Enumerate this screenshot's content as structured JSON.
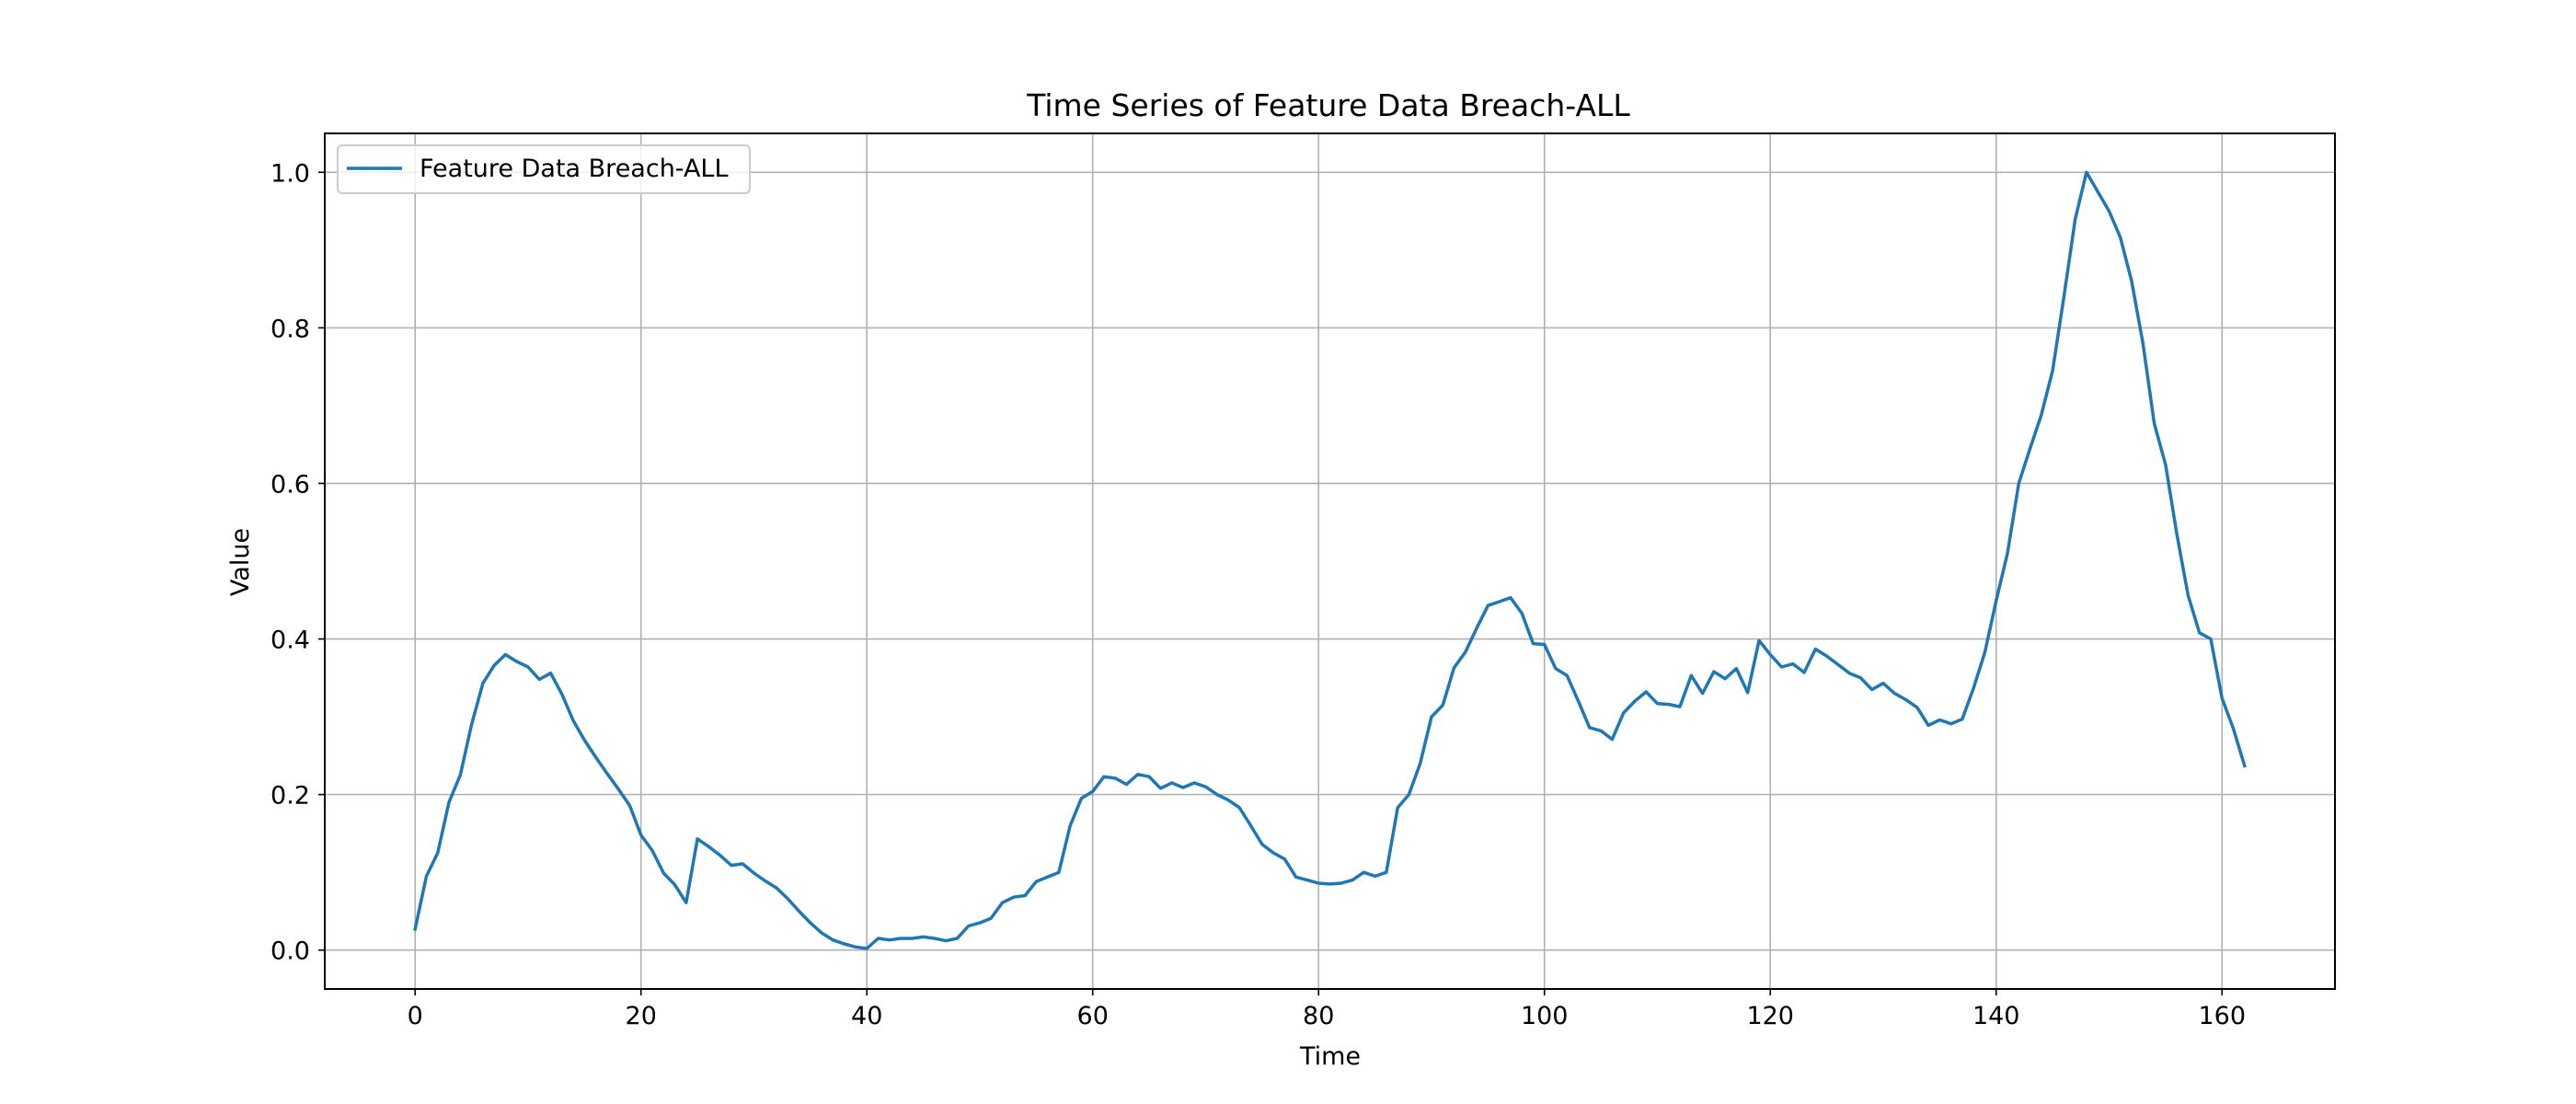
{
  "chart_data": {
    "type": "line",
    "title": "Time Series of Feature Data Breach-ALL",
    "xlabel": "Time",
    "ylabel": "Value",
    "xlim": [
      -8,
      170
    ],
    "ylim": [
      -0.05,
      1.05
    ],
    "xticks": [
      0,
      20,
      40,
      60,
      80,
      100,
      120,
      140,
      160
    ],
    "yticks": [
      0.0,
      0.2,
      0.4,
      0.6,
      0.8,
      1.0
    ],
    "xtick_labels": [
      "0",
      "20",
      "40",
      "60",
      "80",
      "100",
      "120",
      "140",
      "160"
    ],
    "ytick_labels": [
      "0.0",
      "0.2",
      "0.4",
      "0.6",
      "0.8",
      "1.0"
    ],
    "grid": true,
    "legend_position": "top-left",
    "series": [
      {
        "name": "Feature Data Breach-ALL",
        "color": "#1f77b4",
        "x": [
          0,
          1,
          2,
          3,
          4,
          5,
          6,
          7,
          8,
          9,
          10,
          11,
          12,
          13,
          14,
          15,
          16,
          17,
          18,
          19,
          20,
          21,
          22,
          23,
          24,
          25,
          26,
          27,
          28,
          29,
          30,
          31,
          32,
          33,
          34,
          35,
          36,
          37,
          38,
          39,
          40,
          41,
          42,
          43,
          44,
          45,
          46,
          47,
          48,
          49,
          50,
          51,
          52,
          53,
          54,
          55,
          56,
          57,
          58,
          59,
          60,
          61,
          62,
          63,
          64,
          65,
          66,
          67,
          68,
          69,
          70,
          71,
          72,
          73,
          74,
          75,
          76,
          77,
          78,
          79,
          80,
          81,
          82,
          83,
          84,
          85,
          86,
          87,
          88,
          89,
          90,
          91,
          92,
          93,
          94,
          95,
          96,
          97,
          98,
          99,
          100,
          101,
          102,
          103,
          104,
          105,
          106,
          107,
          108,
          109,
          110,
          111,
          112,
          113,
          114,
          115,
          116,
          117,
          118,
          119,
          120,
          121,
          122,
          123,
          124,
          125,
          126,
          127,
          128,
          129,
          130,
          131,
          132,
          133,
          134,
          135,
          136,
          137,
          138,
          139,
          140,
          141,
          142,
          143,
          144,
          145,
          146,
          147,
          148,
          149,
          150,
          151,
          152,
          153,
          154,
          155,
          156,
          157,
          158,
          159,
          160,
          161,
          162
        ],
        "y": [
          0.027,
          0.095,
          0.125,
          0.19,
          0.225,
          0.29,
          0.343,
          0.366,
          0.38,
          0.371,
          0.364,
          0.348,
          0.356,
          0.329,
          0.295,
          0.27,
          0.248,
          0.227,
          0.207,
          0.186,
          0.148,
          0.128,
          0.099,
          0.084,
          0.061,
          0.143,
          0.133,
          0.122,
          0.109,
          0.111,
          0.099,
          0.089,
          0.08,
          0.066,
          0.05,
          0.035,
          0.022,
          0.013,
          0.008,
          0.004,
          0.002,
          0.015,
          0.013,
          0.015,
          0.015,
          0.017,
          0.015,
          0.012,
          0.015,
          0.031,
          0.035,
          0.041,
          0.061,
          0.068,
          0.07,
          0.088,
          0.094,
          0.1,
          0.16,
          0.195,
          0.204,
          0.223,
          0.221,
          0.213,
          0.226,
          0.223,
          0.208,
          0.215,
          0.209,
          0.215,
          0.21,
          0.2,
          0.193,
          0.183,
          0.16,
          0.136,
          0.125,
          0.117,
          0.094,
          0.09,
          0.086,
          0.085,
          0.086,
          0.09,
          0.1,
          0.095,
          0.1,
          0.183,
          0.2,
          0.24,
          0.3,
          0.315,
          0.363,
          0.383,
          0.414,
          0.443,
          0.448,
          0.453,
          0.433,
          0.394,
          0.393,
          0.362,
          0.353,
          0.32,
          0.286,
          0.282,
          0.271,
          0.305,
          0.32,
          0.332,
          0.317,
          0.316,
          0.313,
          0.353,
          0.33,
          0.358,
          0.349,
          0.362,
          0.331,
          0.398,
          0.38,
          0.364,
          0.368,
          0.357,
          0.387,
          0.378,
          0.367,
          0.356,
          0.35,
          0.335,
          0.343,
          0.33,
          0.322,
          0.312,
          0.289,
          0.296,
          0.291,
          0.297,
          0.337,
          0.383,
          0.449,
          0.51,
          0.6,
          0.645,
          0.688,
          0.745,
          0.84,
          0.94,
          1.0,
          0.975,
          0.95,
          0.916,
          0.86,
          0.78,
          0.677,
          0.624,
          0.535,
          0.456,
          0.408,
          0.4,
          0.324,
          0.285,
          0.237
        ]
      }
    ]
  }
}
